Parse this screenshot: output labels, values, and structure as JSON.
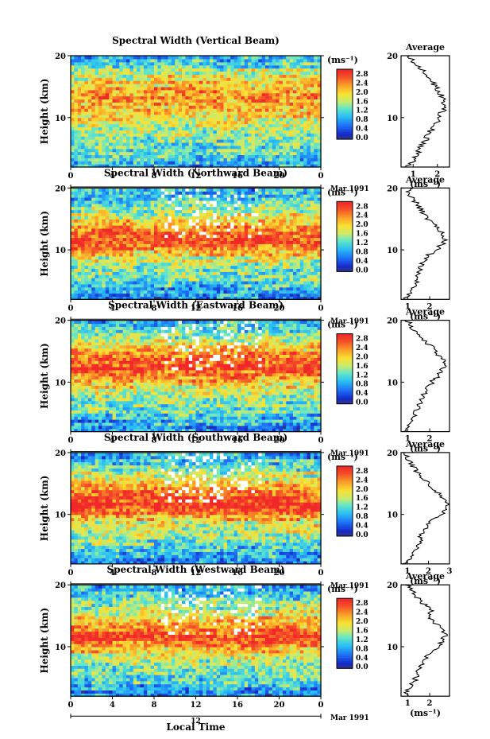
{
  "chart_data": [
    {
      "type": "heatmap",
      "title": "Spectral Width (Vertical Beam)",
      "ylabel": "Height (km)",
      "ylim": [
        2,
        20
      ],
      "yticks": [
        "20",
        "10"
      ],
      "xlim": [
        0,
        24
      ],
      "xticks": [
        "0",
        "4",
        "8",
        "12",
        "16",
        "20",
        "0"
      ],
      "date_marker": "12",
      "date_label": "Mar 1991",
      "colorbar": {
        "unit": "(ms⁻¹)",
        "ticks": [
          "2.8",
          "2.4",
          "2.0",
          "1.6",
          "1.2",
          "0.8",
          "0.4",
          "0.0"
        ]
      },
      "profile_mean": [
        0.9,
        1.1,
        1.2,
        1.3,
        1.4,
        1.5,
        1.6,
        1.8,
        2.0,
        2.1,
        2.2,
        2.3,
        2.2,
        2.0,
        1.8,
        1.6,
        1.2,
        1.0
      ],
      "average": {
        "title": "Average",
        "xticks": [
          "1",
          "2"
        ],
        "xmin": 0.5,
        "xmax": 2.5,
        "xlabel": "(ms⁻¹)",
        "heights": [
          2,
          3,
          4,
          5,
          6,
          7,
          8,
          9,
          10,
          11,
          12,
          13,
          14,
          15,
          16,
          17,
          18,
          19,
          20
        ],
        "values": [
          0.8,
          1.0,
          1.15,
          1.3,
          1.45,
          1.6,
          1.75,
          1.9,
          2.1,
          2.2,
          2.3,
          2.25,
          2.1,
          1.95,
          1.7,
          1.5,
          1.3,
          1.0,
          0.85
        ]
      }
    },
    {
      "type": "heatmap",
      "title": "Spectral Width (Northward Beam)",
      "ylabel": "Height (km)",
      "ylim": [
        2,
        20
      ],
      "yticks": [
        "20",
        "10"
      ],
      "xlim": [
        0,
        24
      ],
      "xticks": [
        "0",
        "4",
        "8",
        "12",
        "16",
        "20",
        "0"
      ],
      "date_marker": "12",
      "date_label": "Mar 1991",
      "colorbar": {
        "unit": "(ms⁻¹)",
        "ticks": [
          "2.8",
          "2.4",
          "2.0",
          "1.6",
          "1.2",
          "0.8",
          "0.4",
          "0.0"
        ]
      },
      "profile_mean": [
        0.7,
        0.9,
        1.1,
        1.3,
        1.4,
        1.5,
        1.7,
        2.0,
        2.4,
        2.7,
        2.6,
        2.3,
        2.0,
        1.7,
        1.5,
        1.3,
        1.1,
        0.9
      ],
      "average": {
        "title": "Average",
        "xticks": [
          "1",
          "2"
        ],
        "xmin": 0.7,
        "xmax": 2.9,
        "xlabel": "(ms⁻¹)",
        "heights": [
          2,
          3,
          4,
          5,
          6,
          7,
          8,
          9,
          10,
          11,
          12,
          13,
          14,
          15,
          16,
          17,
          18,
          19,
          20
        ],
        "values": [
          0.9,
          1.1,
          1.3,
          1.4,
          1.5,
          1.6,
          1.7,
          1.9,
          2.3,
          2.6,
          2.7,
          2.5,
          2.2,
          1.9,
          1.7,
          1.5,
          1.3,
          1.0,
          1.2
        ]
      }
    },
    {
      "type": "heatmap",
      "title": "Spectral Width (Eastward Beam)",
      "ylabel": "Height (km)",
      "ylim": [
        2,
        20
      ],
      "yticks": [
        "20",
        "10"
      ],
      "xlim": [
        0,
        24
      ],
      "xticks": [
        "0",
        "4",
        "8",
        "12",
        "16",
        "20",
        "0"
      ],
      "date_marker": "12",
      "date_label": "Mar 1991",
      "colorbar": {
        "unit": "(ms⁻¹)",
        "ticks": [
          "2.8",
          "2.4",
          "2.0",
          "1.6",
          "1.2",
          "0.8",
          "0.4",
          "0.0"
        ]
      },
      "profile_mean": [
        0.7,
        0.9,
        1.1,
        1.3,
        1.4,
        1.5,
        1.6,
        1.9,
        2.2,
        2.5,
        2.7,
        2.6,
        2.4,
        2.1,
        1.8,
        1.5,
        1.2,
        1.0
      ],
      "average": {
        "title": "Average",
        "xticks": [
          "1",
          "2"
        ],
        "xmin": 0.7,
        "xmax": 2.9,
        "xlabel": "(ms⁻¹)",
        "heights": [
          2,
          3,
          4,
          5,
          6,
          7,
          8,
          9,
          10,
          11,
          12,
          13,
          14,
          15,
          16,
          17,
          18,
          19,
          20
        ],
        "values": [
          0.9,
          1.0,
          1.2,
          1.35,
          1.5,
          1.6,
          1.7,
          1.9,
          2.1,
          2.4,
          2.6,
          2.7,
          2.5,
          2.3,
          2.0,
          1.7,
          1.4,
          1.1,
          1.0
        ]
      }
    },
    {
      "type": "heatmap",
      "title": "Spectral Width (Southward Beam)",
      "ylabel": "Height (km)",
      "ylim": [
        2,
        20
      ],
      "yticks": [
        "20",
        "10"
      ],
      "xlim": [
        0,
        24
      ],
      "xticks": [
        "0",
        "4",
        "8",
        "12",
        "16",
        "20",
        "0"
      ],
      "date_marker": "12",
      "date_label": "Mar 1991",
      "colorbar": {
        "unit": "(ms⁻¹)",
        "ticks": [
          "2.8",
          "2.4",
          "2.0",
          "1.6",
          "1.2",
          "0.8",
          "0.4",
          "0.0"
        ]
      },
      "profile_mean": [
        0.7,
        0.9,
        1.1,
        1.3,
        1.5,
        1.6,
        1.8,
        2.1,
        2.5,
        2.8,
        2.7,
        2.5,
        2.2,
        1.9,
        1.6,
        1.3,
        1.1,
        0.9
      ],
      "average": {
        "title": "Average",
        "xticks": [
          "1",
          "2",
          "3"
        ],
        "xmin": 0.7,
        "xmax": 3.0,
        "xlabel": "(ms⁻¹)",
        "heights": [
          2,
          3,
          4,
          5,
          6,
          7,
          8,
          9,
          10,
          11,
          12,
          13,
          14,
          15,
          16,
          17,
          18,
          19,
          20
        ],
        "values": [
          0.9,
          1.1,
          1.3,
          1.5,
          1.6,
          1.7,
          1.9,
          2.2,
          2.6,
          2.9,
          2.8,
          2.6,
          2.3,
          2.0,
          1.7,
          1.4,
          1.2,
          1.0,
          0.9
        ]
      }
    },
    {
      "type": "heatmap",
      "title": "Spectral Width (Westward Beam)",
      "ylabel": "Height (km)",
      "ylim": [
        2,
        20
      ],
      "yticks": [
        "20",
        "10"
      ],
      "xlim": [
        0,
        24
      ],
      "xticks": [
        "0",
        "4",
        "8",
        "12",
        "16",
        "20",
        "0"
      ],
      "date_marker": "12",
      "date_label": "Mar 1991",
      "xlabel": "Local Time",
      "colorbar": {
        "unit": "(ms⁻¹)",
        "ticks": [
          "2.8",
          "2.4",
          "2.0",
          "1.6",
          "1.2",
          "0.8",
          "0.4",
          "0.0"
        ]
      },
      "profile_mean": [
        0.7,
        0.9,
        1.1,
        1.3,
        1.4,
        1.5,
        1.7,
        2.0,
        2.4,
        2.7,
        2.6,
        2.3,
        2.0,
        1.7,
        1.5,
        1.3,
        1.1,
        0.9
      ],
      "average": {
        "title": "Average",
        "xticks": [
          "1",
          "2"
        ],
        "xmin": 0.7,
        "xmax": 2.9,
        "xlabel": "(ms⁻¹)",
        "heights": [
          2,
          3,
          4,
          5,
          6,
          7,
          8,
          9,
          10,
          11,
          12,
          13,
          14,
          15,
          16,
          17,
          18,
          19,
          20
        ],
        "values": [
          0.9,
          1.0,
          1.2,
          1.4,
          1.5,
          1.6,
          1.8,
          2.0,
          2.4,
          2.6,
          2.7,
          2.5,
          2.2,
          1.9,
          2.1,
          1.7,
          1.4,
          1.2,
          1.0
        ]
      }
    }
  ]
}
